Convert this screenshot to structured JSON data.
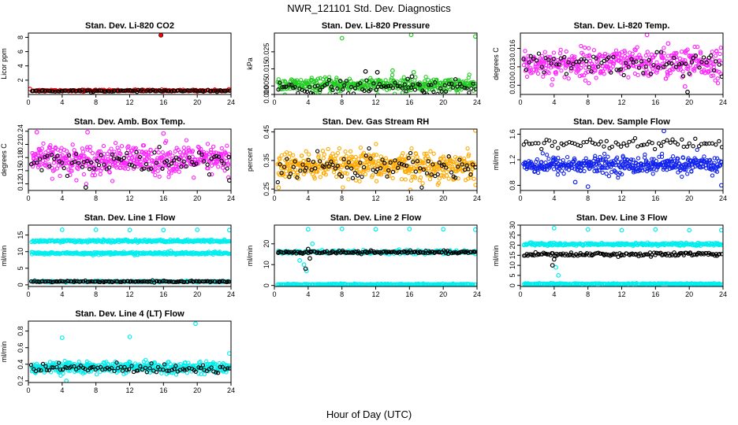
{
  "title": "NWR_121101  Std. Dev. Diagnostics",
  "xlabel": "Hour of Day (UTC)",
  "colors": {
    "black": "#000000",
    "red": "#ff0000",
    "green": "#22cc22",
    "magenta": "#ff22ff",
    "orange": "#ffaa00",
    "blue": "#1122ee",
    "cyan": "#00eeee"
  },
  "chart_data": [
    {
      "type": "scatter",
      "title": "Stan. Dev. Li-820 CO2",
      "ylabel": "Licor ppm",
      "xlim": [
        0,
        24
      ],
      "ylim": [
        0,
        8.6
      ],
      "xticks": [
        0,
        4,
        8,
        12,
        16,
        20,
        24
      ],
      "yticks": [
        2,
        4,
        6,
        8
      ],
      "ytick_labels": [
        "2",
        "4",
        "6",
        "8"
      ],
      "series": [
        {
          "color": "red",
          "base": 0.55,
          "spread": 0.12,
          "count": 200,
          "points": [
            [
              0.2,
              0.75
            ],
            [
              15.7,
              8.3
            ]
          ]
        },
        {
          "color": "black",
          "base": 0.5,
          "spread": 0.1,
          "count": 110,
          "points": []
        }
      ]
    },
    {
      "type": "scatter",
      "title": "Stan. Dev. Li-820 Pressure",
      "ylabel": "kPa",
      "xlim": [
        0,
        24
      ],
      "ylim": [
        0,
        0.036
      ],
      "xticks": [
        0,
        4,
        8,
        12,
        16,
        20,
        24
      ],
      "yticks": [
        0.0,
        0.005,
        0.015,
        0.025
      ],
      "ytick_labels": [
        "0.000",
        "0.005",
        "0.015",
        "0.025"
      ],
      "series": [
        {
          "color": "green",
          "base": 0.0055,
          "spread": 0.0035,
          "count": 420,
          "points": [
            [
              8.0,
              0.033
            ],
            [
              16.2,
              0.035
            ],
            [
              23.8,
              0.034
            ],
            [
              14.0,
              0.014
            ],
            [
              16.5,
              0.013
            ]
          ]
        },
        {
          "color": "black",
          "base": 0.004,
          "spread": 0.0035,
          "count": 90,
          "points": [
            [
              10.8,
              0.0135
            ],
            [
              12.2,
              0.013
            ],
            [
              16.3,
              0.0105
            ],
            [
              15.8,
              0.009
            ]
          ]
        }
      ]
    },
    {
      "type": "scatter",
      "title": "Stan. Dev. Li-820 Temp.",
      "ylabel": "degrees C",
      "xlim": [
        0,
        24
      ],
      "ylim": [
        0.0085,
        0.0185
      ],
      "xticks": [
        0,
        4,
        8,
        12,
        16,
        20,
        24
      ],
      "yticks": [
        0.01,
        0.013,
        0.016
      ],
      "ytick_labels": [
        "0.010",
        "0.013",
        "0.016"
      ],
      "series": [
        {
          "color": "magenta",
          "base": 0.0135,
          "spread": 0.0022,
          "count": 420,
          "points": [
            [
              15.0,
              0.0182
            ],
            [
              19.5,
              0.0098
            ],
            [
              17.5,
              0.0168
            ]
          ]
        },
        {
          "color": "black",
          "base": 0.0135,
          "spread": 0.0016,
          "count": 80,
          "points": [
            [
              19.8,
              0.0089
            ]
          ]
        }
      ]
    },
    {
      "type": "scatter",
      "title": "Stan. Dev. Amb. Box Temp.",
      "ylabel": "degrees C",
      "xlim": [
        0,
        24
      ],
      "ylim": [
        0.105,
        0.245
      ],
      "xticks": [
        0,
        4,
        8,
        12,
        16,
        20,
        24
      ],
      "yticks": [
        0.12,
        0.15,
        0.18,
        0.21,
        0.24
      ],
      "ytick_labels": [
        "0.12",
        "0.15",
        "0.18",
        "0.21",
        "0.24"
      ],
      "series": [
        {
          "color": "magenta",
          "base": 0.175,
          "spread": 0.03,
          "count": 460,
          "points": [
            [
              1.0,
              0.238
            ],
            [
              7.0,
              0.238
            ],
            [
              16.0,
              0.235
            ]
          ]
        },
        {
          "color": "black",
          "base": 0.17,
          "spread": 0.025,
          "count": 80,
          "points": [
            [
              6.8,
              0.112
            ],
            [
              23.8,
              0.128
            ]
          ]
        }
      ]
    },
    {
      "type": "scatter",
      "title": "Stan. Dev. Gas Stream RH",
      "ylabel": "percent",
      "xlim": [
        0,
        24
      ],
      "ylim": [
        0.245,
        0.46
      ],
      "xticks": [
        0,
        4,
        8,
        12,
        16,
        20,
        24
      ],
      "yticks": [
        0.25,
        0.35,
        0.45
      ],
      "ytick_labels": [
        "0.25",
        "0.35",
        "0.45"
      ],
      "series": [
        {
          "color": "orange",
          "base": 0.33,
          "spread": 0.045,
          "count": 480,
          "points": [
            [
              23.8,
              0.455
            ],
            [
              0.5,
              0.255
            ]
          ]
        },
        {
          "color": "black",
          "base": 0.33,
          "spread": 0.04,
          "count": 90,
          "points": []
        }
      ]
    },
    {
      "type": "scatter",
      "title": "Stan. Dev. Sample Flow",
      "ylabel": "ml/min",
      "xlim": [
        0,
        24
      ],
      "ylim": [
        0.72,
        1.68
      ],
      "xticks": [
        0,
        4,
        8,
        12,
        16,
        20,
        24
      ],
      "yticks": [
        0.8,
        1.2,
        1.6
      ],
      "ytick_labels": [
        "0.8",
        "1.2",
        "1.6"
      ],
      "series": [
        {
          "color": "blue",
          "base": 1.12,
          "spread": 0.12,
          "count": 440,
          "points": [
            [
              17.0,
              1.65
            ],
            [
              8.0,
              0.78
            ],
            [
              6.5,
              0.85
            ],
            [
              23.8,
              0.8
            ]
          ]
        },
        {
          "color": "black",
          "base": 1.45,
          "spread": 0.07,
          "count": 70,
          "points": []
        }
      ]
    },
    {
      "type": "scatter",
      "title": "Stan. Dev. Line 1 Flow",
      "ylabel": "ml/min",
      "xlim": [
        0,
        24
      ],
      "ylim": [
        -0.5,
        18
      ],
      "xticks": [
        0,
        4,
        8,
        12,
        16,
        20,
        24
      ],
      "yticks": [
        0,
        5,
        10,
        15
      ],
      "ytick_labels": [
        "0",
        "5",
        "10",
        "15"
      ],
      "series": [
        {
          "color": "cyan",
          "base": 13.2,
          "spread": 0.35,
          "count": 300,
          "points": [
            [
              4.0,
              16.6
            ],
            [
              8.0,
              16.6
            ],
            [
              12.0,
              16.5
            ],
            [
              16.0,
              16.5
            ],
            [
              20.0,
              16.6
            ],
            [
              23.8,
              16.5
            ]
          ]
        },
        {
          "color": "cyan",
          "base": 9.5,
          "spread": 0.35,
          "count": 300,
          "points": []
        },
        {
          "color": "cyan",
          "base": 1.0,
          "spread": 0.2,
          "count": 200,
          "points": []
        },
        {
          "color": "black",
          "base": 1.0,
          "spread": 0.2,
          "count": 130,
          "points": []
        }
      ]
    },
    {
      "type": "scatter",
      "title": "Stan. Dev. Line 2 Flow",
      "ylabel": "ml/min",
      "xlim": [
        0,
        24
      ],
      "ylim": [
        -0.5,
        29
      ],
      "xticks": [
        0,
        4,
        8,
        12,
        16,
        20,
        24
      ],
      "yticks": [
        0,
        10,
        20
      ],
      "ytick_labels": [
        "0",
        "10",
        "20"
      ],
      "series": [
        {
          "color": "cyan",
          "base": 16.0,
          "spread": 0.8,
          "count": 260,
          "points": [
            [
              4.0,
              27.0
            ],
            [
              8.0,
              27.2
            ],
            [
              12.0,
              27.0
            ],
            [
              16.0,
              27.1
            ],
            [
              20.0,
              27.0
            ],
            [
              23.8,
              26.8
            ],
            [
              3.5,
              10.0
            ],
            [
              3.8,
              7.0
            ],
            [
              3.0,
              12.0
            ],
            [
              4.5,
              20.0
            ]
          ]
        },
        {
          "color": "cyan",
          "base": 0.5,
          "spread": 0.3,
          "count": 260,
          "points": []
        },
        {
          "color": "black",
          "base": 16.0,
          "spread": 0.6,
          "count": 150,
          "points": [
            [
              3.7,
              8.0
            ],
            [
              4.2,
              13.0
            ],
            [
              4.0,
              17.5
            ]
          ]
        }
      ]
    },
    {
      "type": "scatter",
      "title": "Stan. Dev. Line 3 Flow",
      "ylabel": "ml/min",
      "xlim": [
        0,
        24
      ],
      "ylim": [
        -0.5,
        30
      ],
      "xticks": [
        0,
        4,
        8,
        12,
        16,
        20,
        24
      ],
      "yticks": [
        0,
        5,
        10,
        15,
        20,
        25,
        30
      ],
      "ytick_labels": [
        "0",
        "5",
        "10",
        "15",
        "20",
        "25",
        "30"
      ],
      "series": [
        {
          "color": "cyan",
          "base": 20.5,
          "spread": 0.6,
          "count": 300,
          "points": [
            [
              4.0,
              28.5
            ],
            [
              8.0,
              27.8
            ],
            [
              12.0,
              27.5
            ],
            [
              16.0,
              27.8
            ],
            [
              20.0,
              27.5
            ],
            [
              23.8,
              27.5
            ],
            [
              4.5,
              5.0
            ],
            [
              4.2,
              9.0
            ]
          ]
        },
        {
          "color": "cyan",
          "base": 0.8,
          "spread": 0.3,
          "count": 260,
          "points": []
        },
        {
          "color": "black",
          "base": 15.5,
          "spread": 0.8,
          "count": 150,
          "points": [
            [
              3.8,
              10.0
            ],
            [
              4.0,
              13.0
            ]
          ]
        }
      ]
    },
    {
      "type": "scatter",
      "title": "Stan. Dev. Line 4 (LT) Flow",
      "ylabel": "ml/min",
      "xlim": [
        0,
        24
      ],
      "ylim": [
        0.18,
        0.92
      ],
      "xticks": [
        0,
        4,
        8,
        12,
        16,
        20,
        24
      ],
      "yticks": [
        0.2,
        0.4,
        0.6,
        0.8
      ],
      "ytick_labels": [
        "0.2",
        "0.4",
        "0.6",
        "0.8"
      ],
      "series": [
        {
          "color": "cyan",
          "base": 0.36,
          "spread": 0.06,
          "count": 460,
          "points": [
            [
              4.0,
              0.72
            ],
            [
              12.0,
              0.73
            ],
            [
              19.8,
              0.89
            ],
            [
              23.8,
              0.53
            ],
            [
              4.5,
              0.2
            ]
          ]
        },
        {
          "color": "black",
          "base": 0.35,
          "spread": 0.05,
          "count": 90,
          "points": []
        }
      ]
    }
  ]
}
